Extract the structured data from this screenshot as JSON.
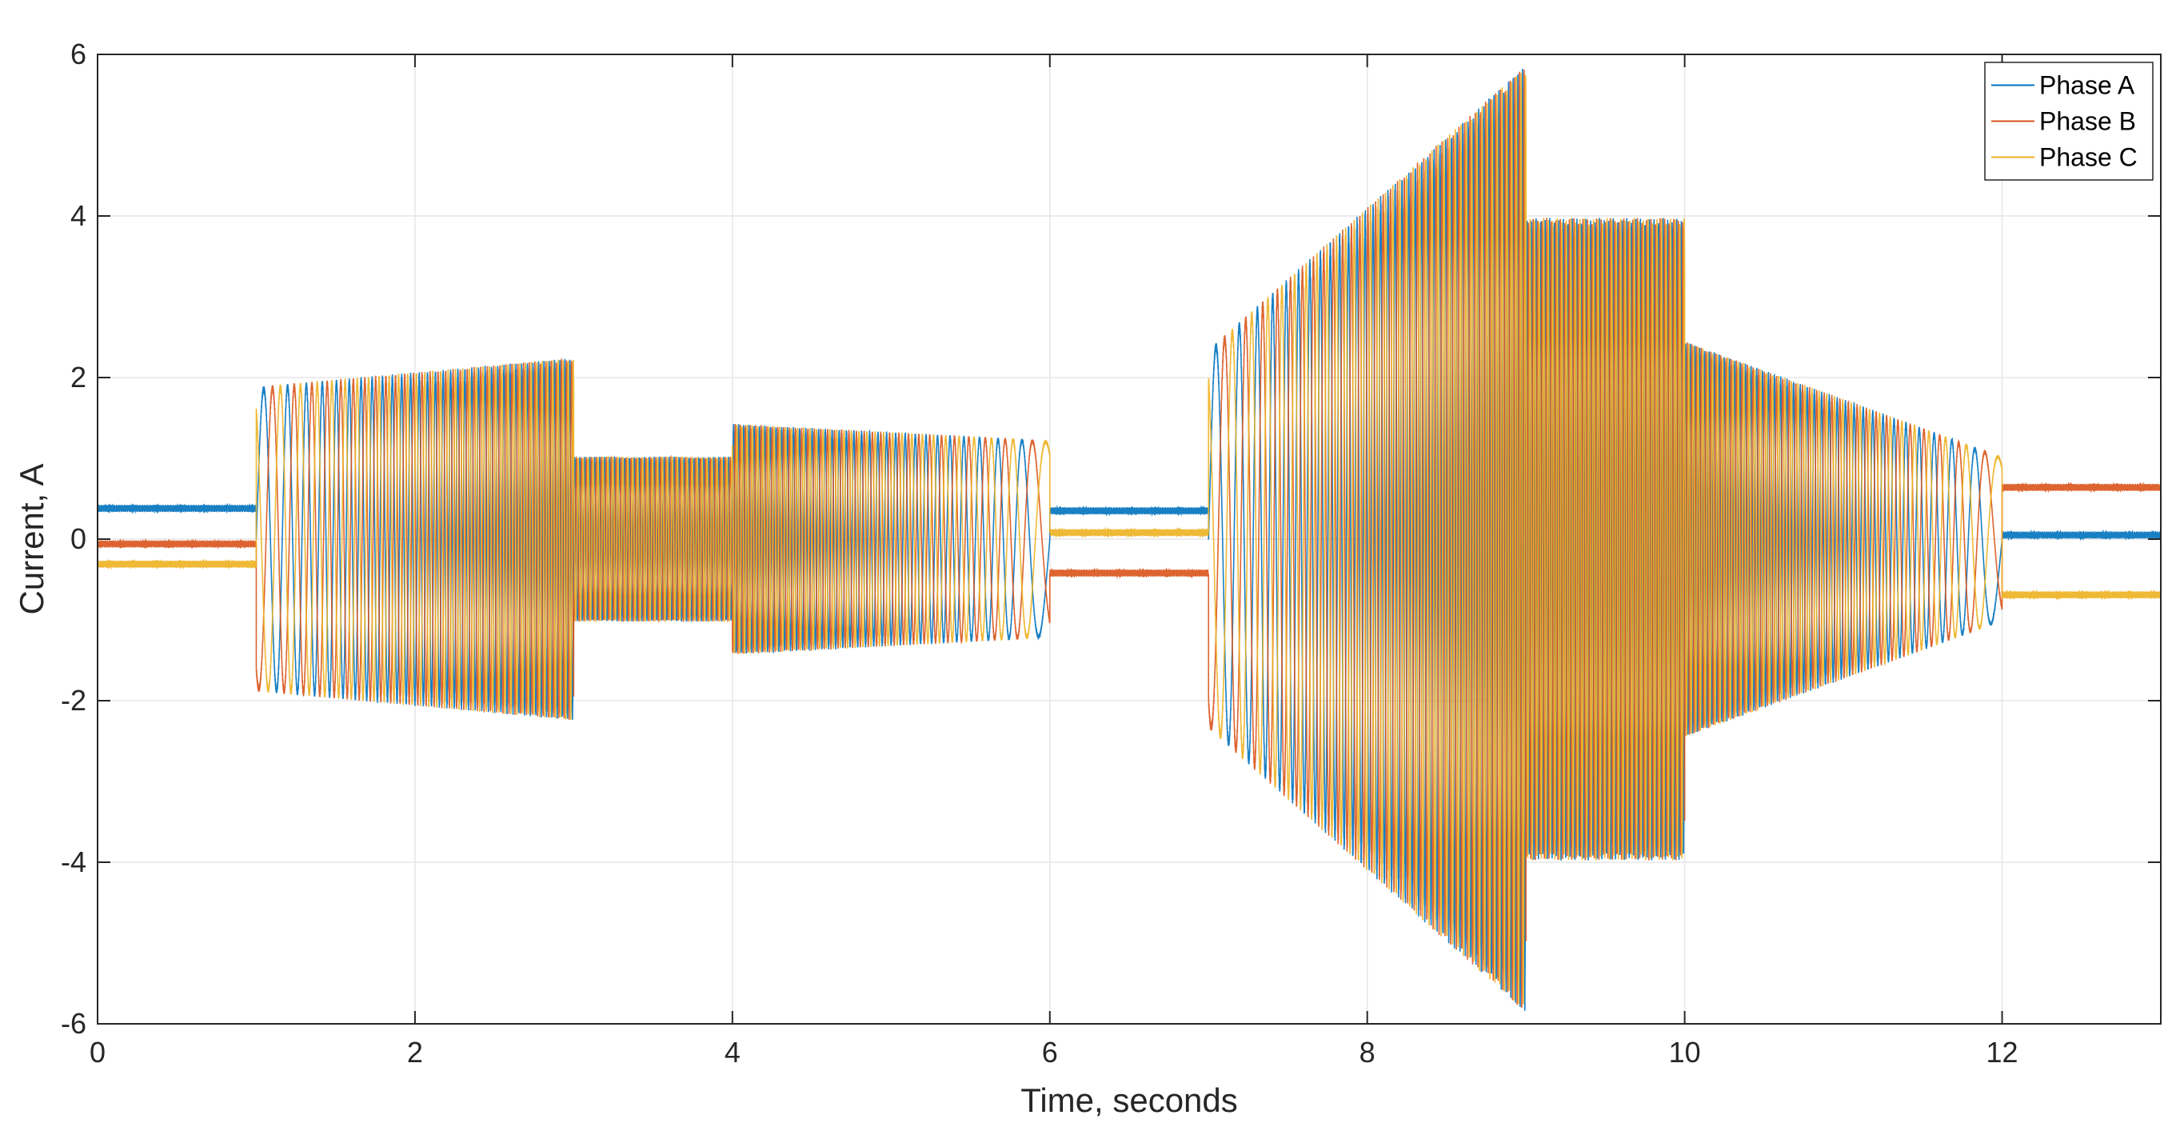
{
  "chart_data": {
    "type": "line",
    "title": "",
    "xlabel": "Time, seconds",
    "ylabel": "Current, A",
    "xlim": [
      0,
      13
    ],
    "ylim": [
      -6,
      6
    ],
    "xticks": [
      0,
      2,
      4,
      6,
      8,
      10,
      12
    ],
    "yticks": [
      -6,
      -4,
      -2,
      0,
      2,
      4,
      6
    ],
    "grid": true,
    "legend_position": "top-right",
    "series": [
      {
        "name": "Phase A",
        "color": "#0072BD",
        "phase_deg": 0
      },
      {
        "name": "Phase B",
        "color": "#D95319",
        "phase_deg": 120
      },
      {
        "name": "Phase C",
        "color": "#EDB120",
        "phase_deg": 240
      }
    ],
    "segments": [
      {
        "t_start": 0,
        "t_end": 1,
        "mode": "dc",
        "values": [
          0.38,
          -0.06,
          -0.31
        ]
      },
      {
        "t_start": 1,
        "t_end": 3,
        "mode": "ac",
        "amp_start": 1.85,
        "amp_end": 2.2,
        "freq_start": 5,
        "freq_end": 32
      },
      {
        "t_start": 3,
        "t_end": 4,
        "mode": "ac",
        "amp_start": 1.0,
        "amp_end": 1.0,
        "freq_start": 32,
        "freq_end": 32
      },
      {
        "t_start": 4,
        "t_end": 6,
        "mode": "ac",
        "amp_start": 1.4,
        "amp_end": 1.2,
        "freq_start": 32,
        "freq_end": 3
      },
      {
        "t_start": 6,
        "t_end": 7,
        "mode": "dc",
        "values": [
          0.35,
          -0.42,
          0.08
        ]
      },
      {
        "t_start": 7,
        "t_end": 9,
        "mode": "ac",
        "amp_start": 2.3,
        "amp_end": 5.75,
        "freq_start": 5,
        "freq_end": 35
      },
      {
        "t_start": 9,
        "t_end": 10,
        "mode": "ac",
        "amp_start": 3.9,
        "amp_end": 3.9,
        "freq_start": 35,
        "freq_end": 35
      },
      {
        "t_start": 10,
        "t_end": 12,
        "mode": "ac",
        "amp_start": 2.4,
        "amp_end": 1.0,
        "freq_start": 35,
        "freq_end": 3
      },
      {
        "t_start": 12,
        "t_end": 13,
        "mode": "dc",
        "values": [
          0.05,
          0.64,
          -0.69
        ]
      }
    ]
  }
}
